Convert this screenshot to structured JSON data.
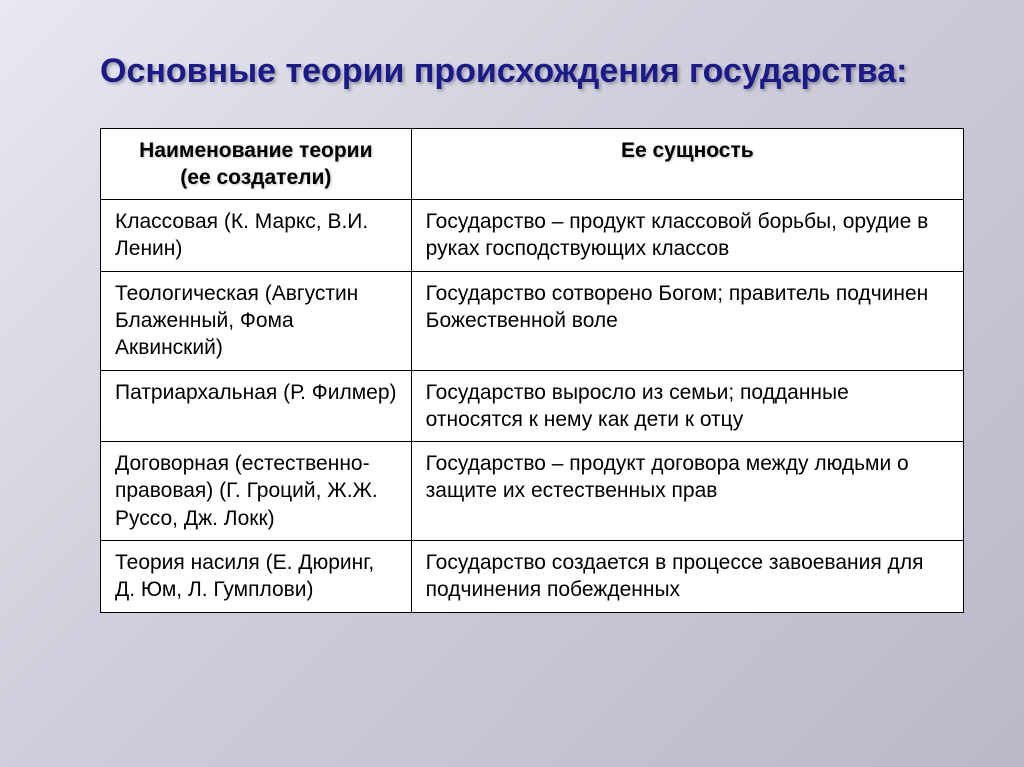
{
  "title": "Основные теории происхождения государства:",
  "table": {
    "header": {
      "col1_line1": "Наименование теории",
      "col1_line2": "(ее создатели)",
      "col2": "Ее сущность"
    },
    "rows": [
      {
        "name": "Классовая (К. Маркс, В.И. Ленин)",
        "essence": "Государство – продукт классовой борьбы, орудие в руках господствующих классов"
      },
      {
        "name": "Теологическая (Августин Блаженный, Фома Аквинский)",
        "essence": "Государство сотворено Богом; правитель подчинен Божественной воле"
      },
      {
        "name": "Патриархальная (Р. Филмер)",
        "essence": "Государство выросло из семьи; подданные относятся к нему как дети к отцу"
      },
      {
        "name": "Договорная (естественно-правовая) (Г. Гроций, Ж.Ж. Руссо, Дж. Локк)",
        "essence": "Государство – продукт договора между людьми о защите их естественных прав"
      },
      {
        "name": "Теория насиля (Е. Дюринг, Д. Юм, Л. Гумплови)",
        "essence": "Государство создается в процессе завоевания для подчинения побежденных"
      }
    ]
  },
  "style": {
    "title_color": "#1a1a8a",
    "title_fontsize": 34,
    "cell_fontsize": 21,
    "border_color": "#000000",
    "bg_gradient_start": "#e8e8f0",
    "bg_gradient_end": "#b8b8c8",
    "table_bg": "#ffffff"
  }
}
